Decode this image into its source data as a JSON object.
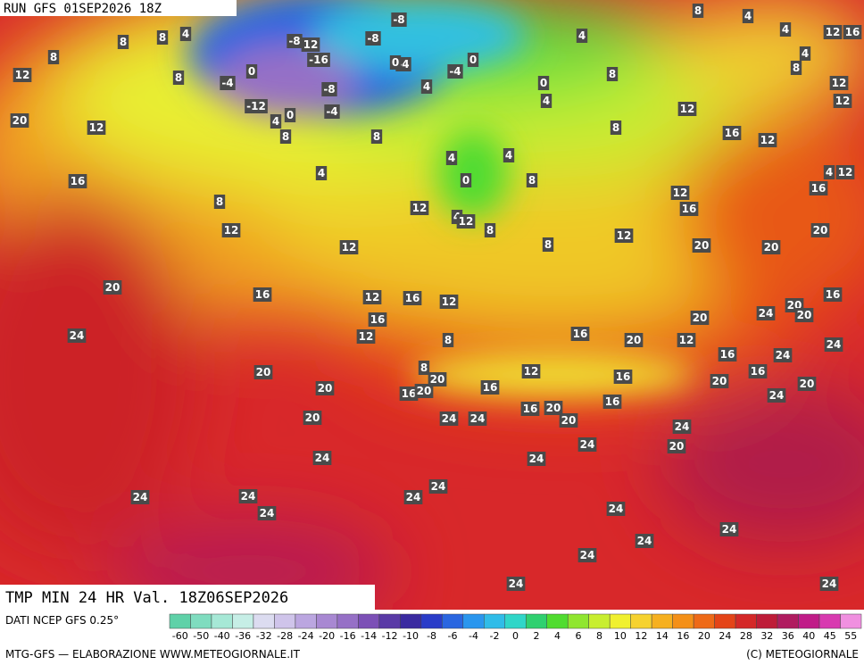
{
  "header": {
    "run": "RUN GFS 01SEP2026 18Z",
    "title": "TMP MIN 24 HR Val. 18Z06SEP2026"
  },
  "footer": {
    "source": "DATI NCEP GFS 0.25°",
    "credit": "MTG-GFS — ELABORAZIONE WWW.METEOGIORNALE.IT",
    "copyright": "(C) METEOGIORNALE"
  },
  "legend": {
    "ticks": [
      -60,
      -50,
      -40,
      -36,
      -32,
      -28,
      -24,
      -20,
      -16,
      -14,
      -12,
      -10,
      -8,
      -6,
      -4,
      -2,
      0,
      2,
      4,
      6,
      8,
      10,
      12,
      14,
      16,
      20,
      24,
      28,
      32,
      36,
      40,
      45,
      55
    ],
    "colors": [
      "#5fd1a8",
      "#7fdcbf",
      "#a6e8d6",
      "#c6eee6",
      "#dcdcf0",
      "#cfc4ea",
      "#bba6e0",
      "#a888d2",
      "#9670c6",
      "#7c50b6",
      "#5a3aa6",
      "#3a2aa0",
      "#2a3cc8",
      "#2a66e0",
      "#2a96ee",
      "#30bce8",
      "#30d6c8",
      "#30d070",
      "#50dc30",
      "#90e630",
      "#c8ee30",
      "#f0f030",
      "#f6d230",
      "#f6b020",
      "#f49018",
      "#ee6a18",
      "#e44418",
      "#d42828",
      "#be1c38",
      "#b01c60",
      "#c01c88",
      "#d83ab0",
      "#f090e0"
    ]
  },
  "map_labels": [
    8,
    4,
    4,
    12,
    16,
    8,
    8,
    4,
    -8,
    -8,
    12,
    -16,
    -8,
    -4,
    0,
    0,
    -4,
    4,
    8,
    12,
    8,
    0,
    -4,
    -8,
    -12,
    -4,
    0,
    4,
    8,
    4,
    0,
    4,
    8,
    8,
    4,
    12,
    12,
    20,
    12,
    8,
    12,
    8,
    16,
    12,
    4,
    4,
    4,
    0,
    8,
    16,
    8,
    12,
    4,
    12,
    8,
    12,
    16,
    16,
    4,
    12,
    12,
    12,
    8,
    12,
    20,
    20,
    20,
    20,
    16,
    12,
    16,
    12,
    16,
    24,
    16,
    12,
    8,
    16,
    20,
    20,
    12,
    24,
    20,
    20,
    24,
    20,
    8,
    20,
    12,
    16,
    16,
    24,
    16,
    20,
    24,
    20,
    20,
    16,
    20,
    16,
    20,
    24,
    24,
    16,
    20,
    20,
    16,
    24,
    20,
    24,
    24,
    24,
    24,
    24,
    24,
    24,
    24,
    24,
    24,
    24,
    24,
    24,
    24
  ]
}
